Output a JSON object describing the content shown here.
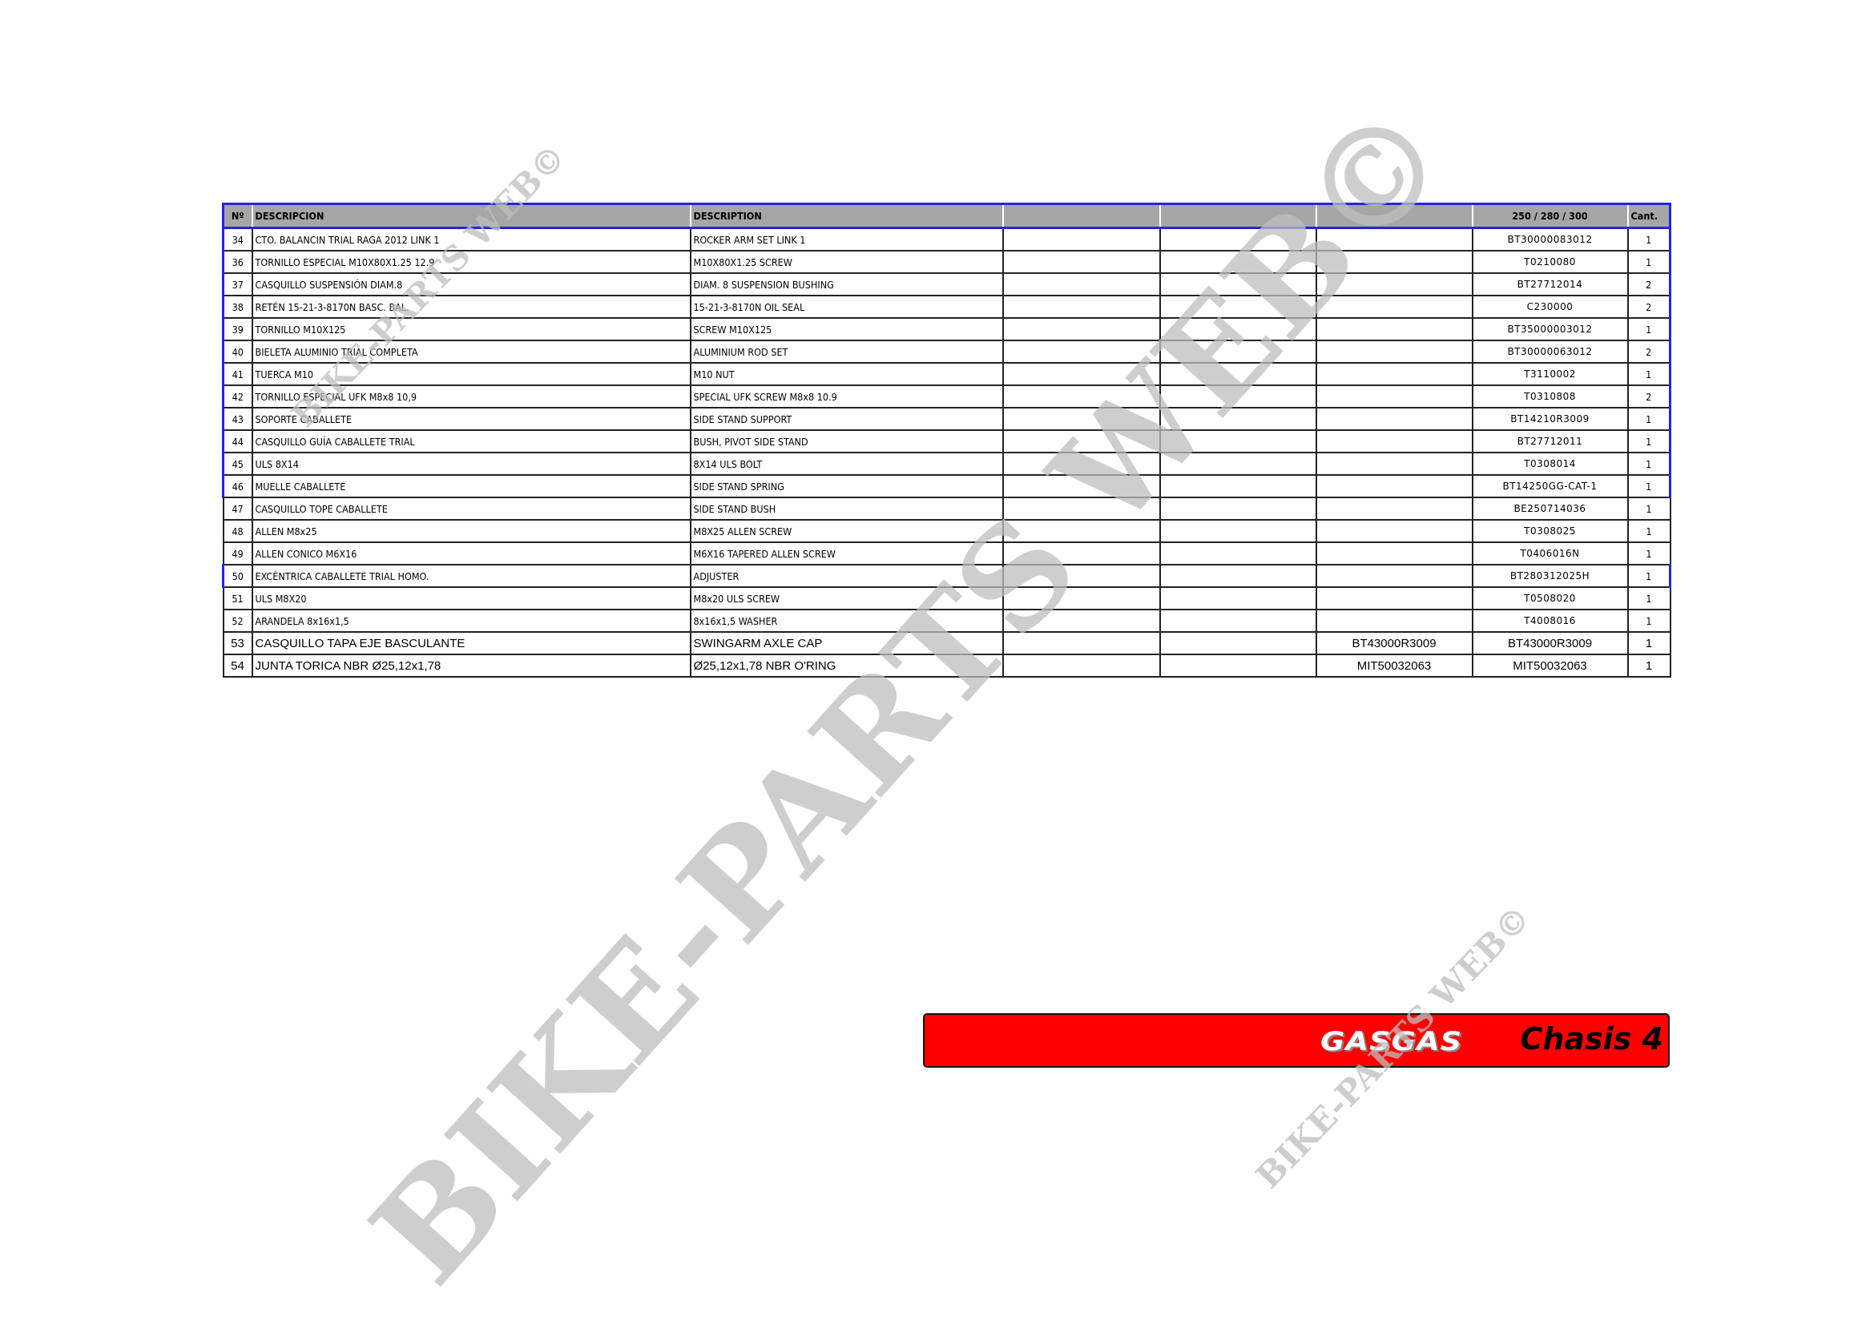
{
  "table": {
    "headers": [
      "Nº",
      "DESCRIPCION",
      "DESCRIPTION",
      "",
      "",
      "",
      "250 / 280 / 300",
      "Cant."
    ],
    "rows": [
      {
        "n": "34",
        "es": "CTO. BALANCIN TRIAL RAGA 2012 LINK 1",
        "en": "ROCKER ARM SET LINK 1",
        "c1": "",
        "c2": "",
        "c3": "",
        "ref": "BT30000083012",
        "qty": "1"
      },
      {
        "n": "36",
        "es": "TORNILLO ESPECIAL M10X80X1.25 12.9",
        "en": " M10X80X1.25 SCREW",
        "c1": "",
        "c2": "",
        "c3": "",
        "ref": "T0210080",
        "qty": "1"
      },
      {
        "n": "37",
        "es": "CASQUILLO SUSPENSIÓN DIAM.8",
        "en": "DIAM. 8 SUSPENSION BUSHING",
        "c1": "",
        "c2": "",
        "c3": "",
        "ref": "BT27712014",
        "qty": "2"
      },
      {
        "n": "38",
        "es": "RETÉN 15-21-3-8170N BASC. BAL.",
        "en": "15-21-3-8170N OIL SEAL",
        "c1": "",
        "c2": "",
        "c3": "",
        "ref": "C230000",
        "qty": "2"
      },
      {
        "n": "39",
        "es": "TORNILLO M10X125",
        "en": "SCREW M10X125",
        "c1": "",
        "c2": "",
        "c3": "",
        "ref": "BT35000003012",
        "qty": "1"
      },
      {
        "n": "40",
        "es": "BIELETA ALUMINIO TRIAL COMPLETA",
        "en": "ALUMINIUM ROD SET",
        "c1": "",
        "c2": "",
        "c3": "",
        "ref": "BT30000063012",
        "qty": "2"
      },
      {
        "n": "41",
        "es": "TUERCA M10",
        "en": " M10 NUT",
        "c1": "",
        "c2": "",
        "c3": "",
        "ref": "T3110002",
        "qty": "1"
      },
      {
        "n": "42",
        "es": "TORNILLO ESPECIAL UFK M8x8 10,9",
        "en": "SPECIAL UFK SCREW M8x8 10.9",
        "c1": "",
        "c2": "",
        "c3": "",
        "ref": "T0310808",
        "qty": "2"
      },
      {
        "n": "43",
        "es": "SOPORTE CABALLETE",
        "en": "SIDE STAND SUPPORT",
        "c1": "",
        "c2": "",
        "c3": "",
        "ref": "BT14210R3009",
        "qty": "1"
      },
      {
        "n": "44",
        "es": "CASQUILLO GUÍA CABALLETE TRIAL",
        "en": "BUSH, PIVOT SIDE STAND",
        "c1": "",
        "c2": "",
        "c3": "",
        "ref": "BT27712011",
        "qty": "1"
      },
      {
        "n": "45",
        "es": "ULS 8X14",
        "en": "8X14 ULS BOLT",
        "c1": "",
        "c2": "",
        "c3": "",
        "ref": "T0308014",
        "qty": "1"
      },
      {
        "n": "46",
        "es": "MUELLE CABALLETE",
        "en": "SIDE STAND SPRING",
        "c1": "",
        "c2": "",
        "c3": "",
        "ref": "BT14250GG-CAT-1",
        "qty": "1"
      },
      {
        "n": "47",
        "es": "CASQUILLO TOPE CABALLETE",
        "en": "SIDE STAND BUSH",
        "c1": "",
        "c2": "",
        "c3": "",
        "ref": "BE250714036",
        "qty": "1"
      },
      {
        "n": "48",
        "es": "ALLEN M8x25",
        "en": "M8X25 ALLEN SCREW",
        "c1": "",
        "c2": "",
        "c3": "",
        "ref": "T0308025",
        "qty": "1"
      },
      {
        "n": "49",
        "es": "ALLEN CONICO M6X16",
        "en": "M6X16 TAPERED ALLEN SCREW",
        "c1": "",
        "c2": "",
        "c3": "",
        "ref": "T0406016N",
        "qty": "1"
      },
      {
        "n": "50",
        "es": "EXCÉNTRICA CABALLETE TRIAL HOMO.",
        "en": "ADJUSTER",
        "c1": "",
        "c2": "",
        "c3": "",
        "ref": "BT280312025H",
        "qty": "1"
      },
      {
        "n": "51",
        "es": "ULS M8X20",
        "en": "M8x20 ULS SCREW",
        "c1": "",
        "c2": "",
        "c3": "",
        "ref": "T0508020",
        "qty": "1"
      },
      {
        "n": "52",
        "es": "ARANDELA 8x16x1,5",
        "en": "8x16x1,5 WASHER",
        "c1": "",
        "c2": "",
        "c3": "",
        "ref": "T4008016",
        "qty": "1"
      },
      {
        "n": "53",
        "es": "CASQUILLO TAPA EJE BASCULANTE",
        "en": "SWINGARM AXLE CAP",
        "c1": "",
        "c2": "",
        "c3": "BT43000R3009",
        "ref": "BT43000R3009",
        "qty": "1"
      },
      {
        "n": "54",
        "es": "JUNTA TORICA NBR  Ø25,12x1,78",
        "en": "Ø25,12x1,78 NBR O'RING",
        "c1": "",
        "c2": "",
        "c3": "MIT50032063",
        "ref": "MIT50032063",
        "qty": "1"
      }
    ]
  },
  "footer": {
    "brand": "GASGAS",
    "section": "Chasis 4",
    "bar_color": "#ff0000"
  },
  "watermark": {
    "text": "BIKE-PARTS WEB©"
  },
  "colors": {
    "header_bg": "#a6a6a6",
    "header_border": "#2222ee"
  }
}
